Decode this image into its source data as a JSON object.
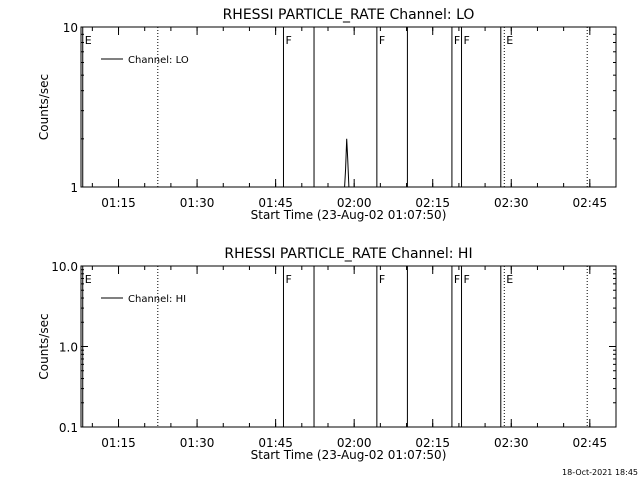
{
  "timestamp": "18-Oct-2021 18:45",
  "chart_data": [
    {
      "type": "line",
      "title": "RHESSI PARTICLE_RATE Channel: LO",
      "xlabel": "Start Time (23-Aug-02 01:07:50)",
      "ylabel": "Counts/sec",
      "y_scale": "log",
      "ylim": [
        1,
        10
      ],
      "y_ticks": [
        "1",
        "10"
      ],
      "xlim": [
        "01:07:50",
        "02:50:00"
      ],
      "x_ticks": [
        "01:15",
        "01:30",
        "01:45",
        "02:00",
        "02:15",
        "02:30",
        "02:45"
      ],
      "legend": {
        "position": "top-left",
        "entries": [
          "Channel: LO"
        ]
      },
      "series": [
        {
          "name": "Channel: LO",
          "x": [
            "01:58:10",
            "01:58:22",
            "01:58:34",
            "01:58:46",
            "01:59:00"
          ],
          "values": [
            1.0,
            1.3,
            2.0,
            1.5,
            1.0
          ]
        }
      ],
      "event_lines": [
        {
          "time": "01:08:10",
          "label": "E",
          "style": "solid"
        },
        {
          "time": "01:22:30",
          "label": "",
          "style": "dotted"
        },
        {
          "time": "01:46:30",
          "label": "F",
          "style": "solid"
        },
        {
          "time": "01:52:20",
          "label": "",
          "style": "solid"
        },
        {
          "time": "02:04:20",
          "label": "F",
          "style": "solid"
        },
        {
          "time": "02:10:10",
          "label": "",
          "style": "solid"
        },
        {
          "time": "02:18:40",
          "label": "F",
          "style": "solid"
        },
        {
          "time": "02:20:30",
          "label": "F",
          "style": "solid"
        },
        {
          "time": "02:28:00",
          "label": "",
          "style": "solid"
        },
        {
          "time": "02:28:40",
          "label": "E",
          "style": "dotted"
        },
        {
          "time": "02:44:30",
          "label": "",
          "style": "dotted"
        }
      ]
    },
    {
      "type": "line",
      "title": "RHESSI PARTICLE_RATE Channel: HI",
      "xlabel": "Start Time (23-Aug-02 01:07:50)",
      "ylabel": "Counts/sec",
      "y_scale": "log",
      "ylim": [
        0.1,
        10
      ],
      "y_ticks": [
        "0.1",
        "1.0",
        "10.0"
      ],
      "xlim": [
        "01:07:50",
        "02:50:00"
      ],
      "x_ticks": [
        "01:15",
        "01:30",
        "01:45",
        "02:00",
        "02:15",
        "02:30",
        "02:45"
      ],
      "legend": {
        "position": "top-left",
        "entries": [
          "Channel: HI"
        ]
      },
      "series": [
        {
          "name": "Channel: HI",
          "x": [],
          "values": []
        }
      ],
      "event_lines": [
        {
          "time": "01:08:10",
          "label": "E",
          "style": "solid"
        },
        {
          "time": "01:22:30",
          "label": "",
          "style": "dotted"
        },
        {
          "time": "01:46:30",
          "label": "F",
          "style": "solid"
        },
        {
          "time": "01:52:20",
          "label": "",
          "style": "solid"
        },
        {
          "time": "02:04:20",
          "label": "F",
          "style": "solid"
        },
        {
          "time": "02:10:10",
          "label": "",
          "style": "solid"
        },
        {
          "time": "02:18:40",
          "label": "F",
          "style": "solid"
        },
        {
          "time": "02:20:30",
          "label": "F",
          "style": "solid"
        },
        {
          "time": "02:28:00",
          "label": "",
          "style": "solid"
        },
        {
          "time": "02:28:40",
          "label": "E",
          "style": "dotted"
        },
        {
          "time": "02:44:30",
          "label": "",
          "style": "dotted"
        }
      ]
    }
  ]
}
